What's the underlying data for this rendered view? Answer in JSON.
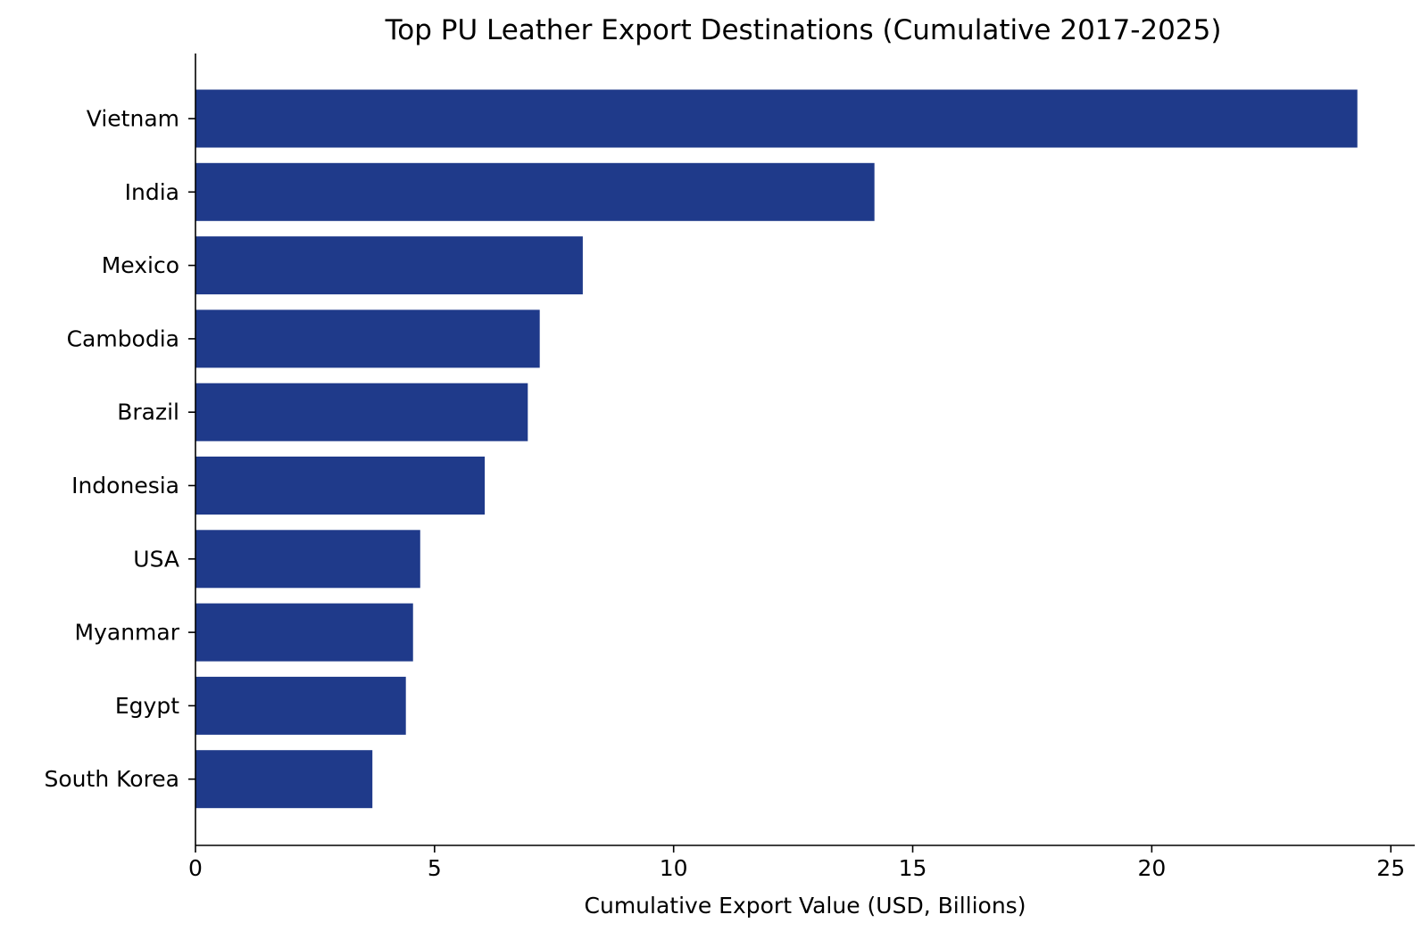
{
  "chart_data": {
    "type": "bar",
    "orientation": "horizontal",
    "title": "Top PU Leather Export Destinations (Cumulative 2017-2025)",
    "xlabel": "Cumulative Export Value (USD, Billions)",
    "ylabel": "",
    "categories": [
      "Vietnam",
      "India",
      "Mexico",
      "Cambodia",
      "Brazil",
      "Indonesia",
      "USA",
      "Myanmar",
      "Egypt",
      "South Korea"
    ],
    "values": [
      24.3,
      14.2,
      8.1,
      7.2,
      6.95,
      6.05,
      4.7,
      4.55,
      4.4,
      3.7
    ],
    "xlim": [
      0,
      25.5
    ],
    "xticks": [
      0,
      5,
      10,
      15,
      20,
      25
    ],
    "grid": false,
    "bar_color": "#1f3a8a"
  }
}
